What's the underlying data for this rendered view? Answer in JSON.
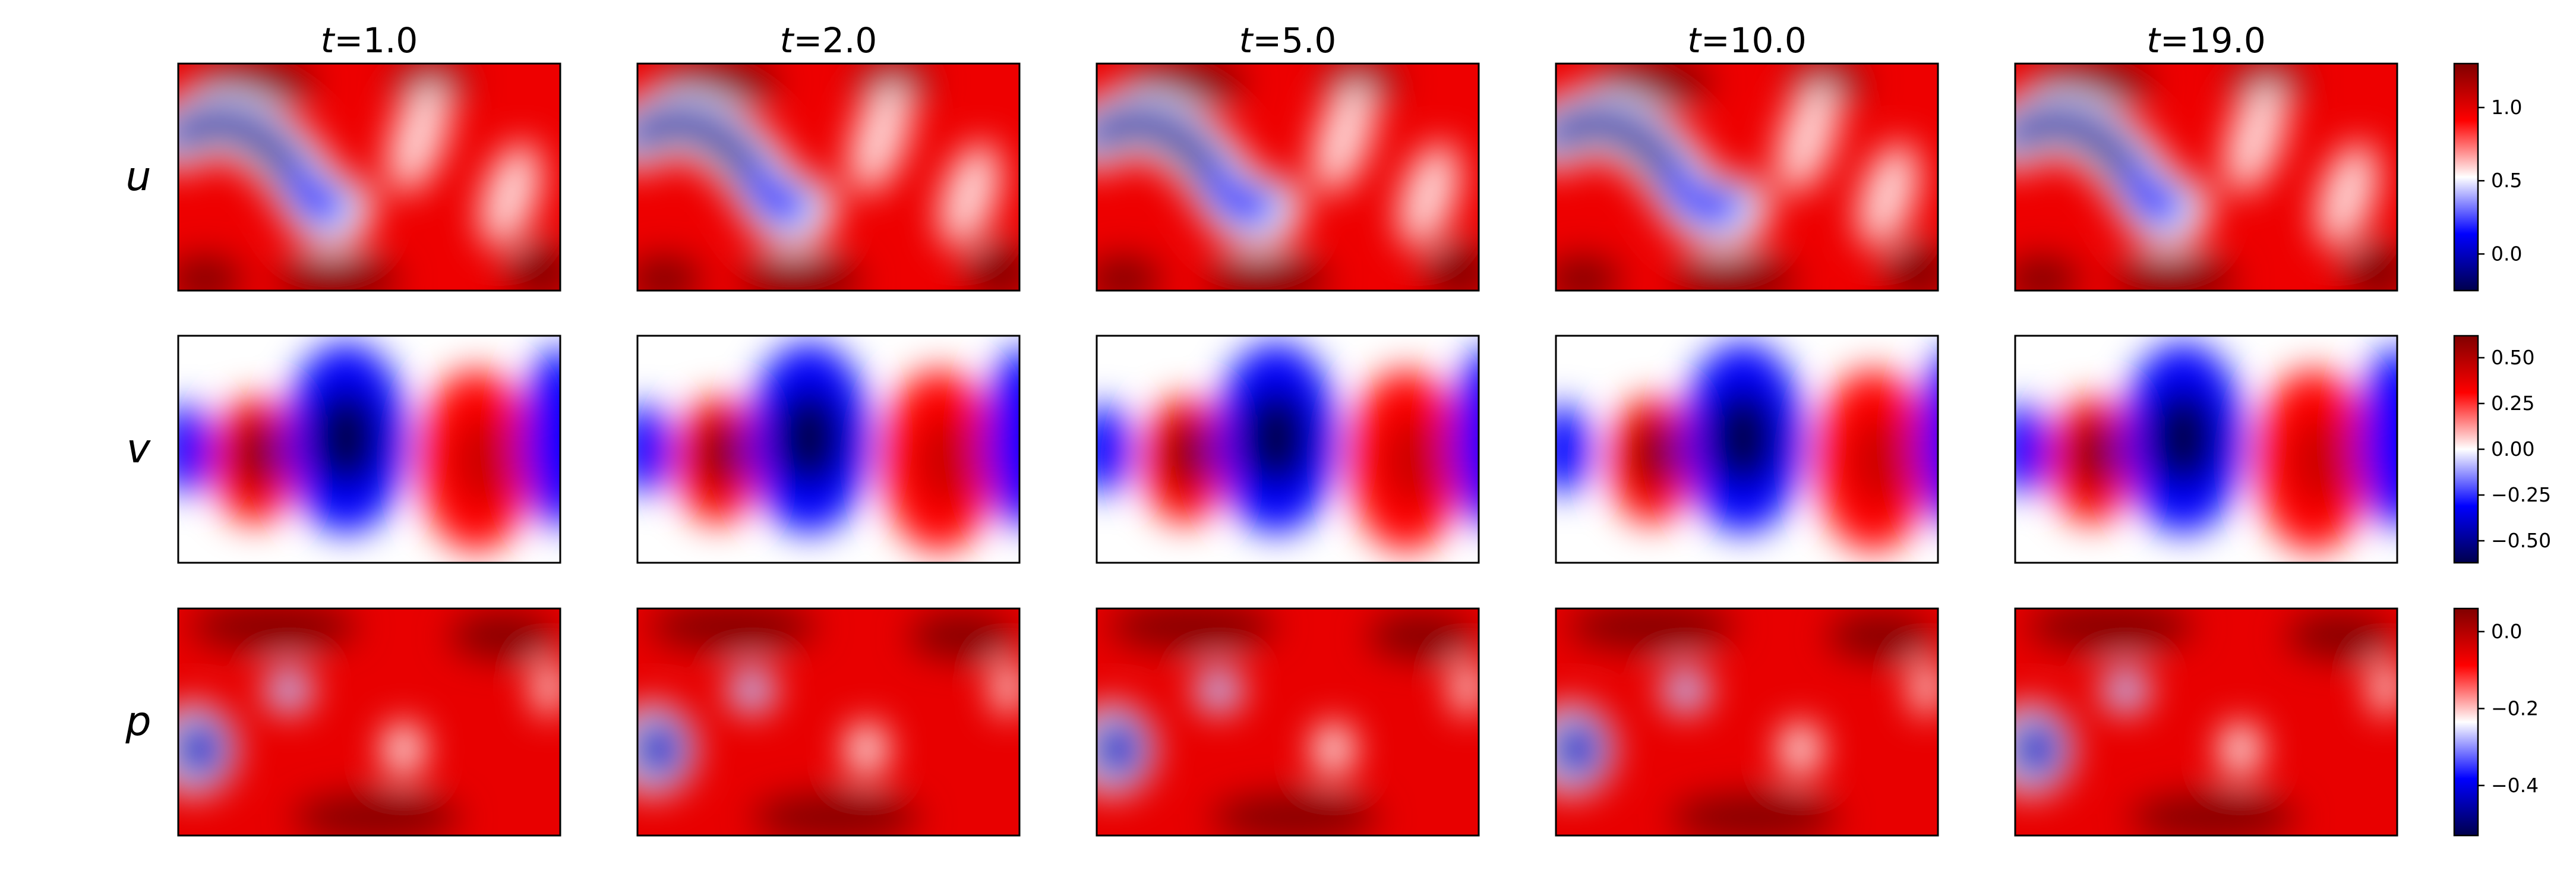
{
  "chart_data": {
    "type": "heatmap",
    "colormap": "seismic",
    "time_label": "t",
    "times": [
      "1.0",
      "2.0",
      "5.0",
      "10.0",
      "19.0"
    ],
    "column_titles": [
      "=1.0",
      "=2.0",
      "=5.0",
      "=10.0",
      "=19.0"
    ],
    "rows": [
      {
        "label": "u",
        "colorbar": {
          "range": [
            -0.25,
            1.3
          ],
          "ticks": [
            0.0,
            0.5,
            1.0
          ],
          "tick_labels": [
            "0.0",
            "0.5",
            "1.0"
          ]
        }
      },
      {
        "label": "v",
        "colorbar": {
          "range": [
            -0.62,
            0.62
          ],
          "ticks": [
            -0.5,
            -0.25,
            0.0,
            0.25,
            0.5
          ],
          "tick_labels": [
            "−0.50",
            "−0.25",
            "0.00",
            "0.25",
            "0.50"
          ]
        }
      },
      {
        "label": "p",
        "colorbar": {
          "range": [
            -0.53,
            0.06
          ],
          "ticks": [
            -0.4,
            -0.2,
            0.0
          ],
          "tick_labels": [
            "−0.4",
            "−0.2",
            "0.0"
          ]
        }
      }
    ],
    "grid": false,
    "axes_ticks": false
  }
}
